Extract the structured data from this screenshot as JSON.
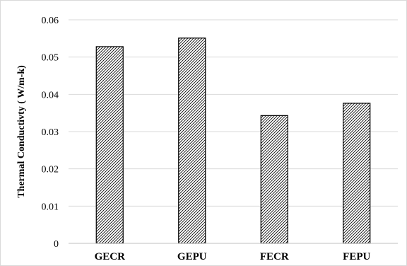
{
  "chart_data": {
    "type": "bar",
    "title": "",
    "xlabel": "",
    "ylabel": "Thermal Conductivty  ( W/m-k)",
    "categories": [
      "GECR",
      "GEPU",
      "FECR",
      "FEPU"
    ],
    "values": [
      0.0528,
      0.0551,
      0.0343,
      0.0376
    ],
    "ylim": [
      0,
      0.06
    ],
    "yticks": [
      "0",
      "0.01",
      "0.02",
      "0.03",
      "0.04",
      "0.05",
      "0.06"
    ],
    "grid": "horizontal",
    "legend": "none",
    "bar_fill": "diagonal-hatch",
    "colors": {
      "bar_stroke": "#000000",
      "hatch": "#000000",
      "grid": "#d9d9d9",
      "axis": "#bfbfbf"
    }
  }
}
